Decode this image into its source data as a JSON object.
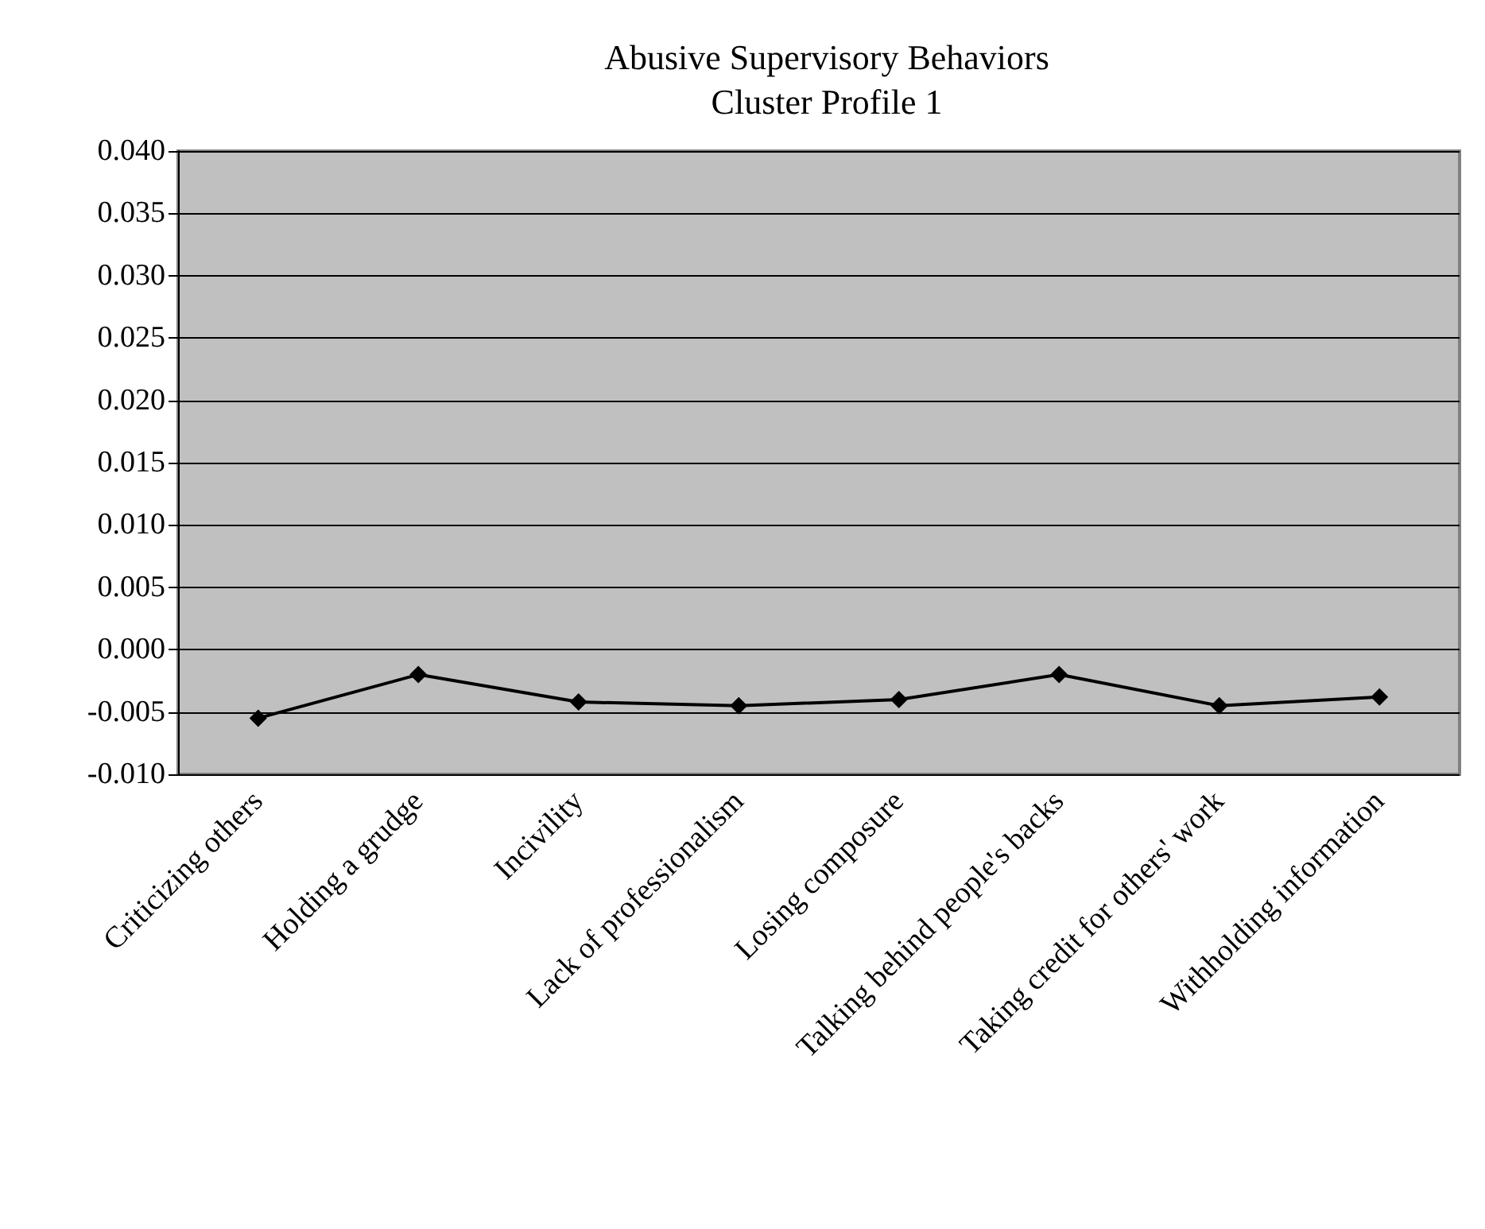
{
  "chart_data": {
    "type": "line",
    "title": "Abusive Supervisory Behaviors",
    "subtitle": "Cluster Profile 1",
    "categories": [
      "Criticizing others",
      "Holding a grudge",
      "Incivility",
      "Lack of professionalism",
      "Losing composure",
      "Talking behind people's backs",
      "Taking credit for others' work",
      "Withholding information"
    ],
    "series": [
      {
        "color": "#000000",
        "values": [
          -0.0055,
          -0.002,
          -0.0042,
          -0.0045,
          -0.004,
          -0.002,
          -0.0045,
          -0.0038
        ]
      }
    ],
    "ylim": [
      -0.01,
      0.04
    ],
    "yticks": [
      {
        "value": -0.01,
        "label": "-0.010"
      },
      {
        "value": -0.005,
        "label": "-0.005"
      },
      {
        "value": 0,
        "label": "0.000"
      },
      {
        "value": 0.005,
        "label": "0.005"
      },
      {
        "value": 0.01,
        "label": "0.010"
      },
      {
        "value": 0.015,
        "label": "0.015"
      },
      {
        "value": 0.02,
        "label": "0.020"
      },
      {
        "value": 0.025,
        "label": "0.025"
      },
      {
        "value": 0.03,
        "label": "0.030"
      },
      {
        "value": 0.035,
        "label": "0.035"
      },
      {
        "value": 0.04,
        "label": "0.040"
      }
    ],
    "grid": "y",
    "marker": "diamond",
    "line_style": "solid"
  }
}
